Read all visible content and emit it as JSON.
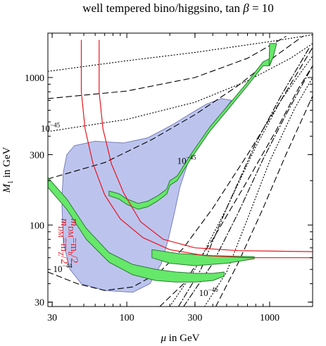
{
  "chart_data": {
    "type": "area",
    "title": "well tempered bino/higgsino, tan β = 10",
    "title_prefix": "well tempered bino/higgsino, tan ",
    "title_beta": "β",
    "title_suffix": " = 10",
    "xlabel": "μ in GeV",
    "xlabel_symbol": "μ",
    "xlabel_text": " in GeV",
    "ylabel": "M1 in GeV",
    "ylabel_symbol": "M",
    "ylabel_sub": "1",
    "ylabel_text": " in GeV",
    "xscale": "log",
    "yscale": "log",
    "xlim": [
      28,
      2000
    ],
    "ylim": [
      28,
      2000
    ],
    "x_ticks": [
      30,
      100,
      300,
      1000
    ],
    "y_ticks": [
      30,
      100,
      300,
      1000
    ],
    "x_tick_labels": [
      "30",
      "100",
      "300",
      "1000"
    ],
    "y_tick_labels": [
      "30",
      "100",
      "300",
      "1000"
    ],
    "grid": false,
    "colors": {
      "region_fill": "#bcc4ee",
      "region_stroke": "#7a80b8",
      "band_fill": "#66e86a",
      "band_stroke": "#2e7a35",
      "mdm_lines": "#e8141e",
      "contours": "#000000"
    },
    "region": {
      "name": "blue shaded region",
      "points": [
        [
          38,
          300
        ],
        [
          43,
          345
        ],
        [
          60,
          370
        ],
        [
          95,
          360
        ],
        [
          140,
          390
        ],
        [
          210,
          480
        ],
        [
          280,
          570
        ],
        [
          360,
          660
        ],
        [
          460,
          720
        ],
        [
          540,
          700
        ],
        [
          430,
          520
        ],
        [
          330,
          370
        ],
        [
          270,
          270
        ],
        [
          235,
          180
        ],
        [
          215,
          120
        ],
        [
          195,
          80
        ],
        [
          175,
          55
        ],
        [
          145,
          40
        ],
        [
          110,
          35
        ],
        [
          70,
          36
        ],
        [
          48,
          40
        ],
        [
          40,
          50
        ],
        [
          36,
          75
        ],
        [
          35,
          150
        ],
        [
          36,
          230
        ]
      ]
    },
    "bands": [
      {
        "name": "green band, left arm",
        "upper": [
          [
            28,
            210
          ],
          [
            38,
            150
          ],
          [
            52,
            95
          ],
          [
            75,
            65
          ],
          [
            110,
            54
          ],
          [
            160,
            50
          ],
          [
            220,
            48
          ],
          [
            300,
            47
          ],
          [
            400,
            47
          ],
          [
            480,
            48
          ]
        ],
        "lower": [
          [
            28,
            180
          ],
          [
            38,
            128
          ],
          [
            52,
            80
          ],
          [
            75,
            56
          ],
          [
            110,
            46
          ],
          [
            160,
            42
          ],
          [
            220,
            41
          ],
          [
            300,
            41
          ],
          [
            400,
            42
          ],
          [
            480,
            45
          ]
        ]
      },
      {
        "name": "green band, right arm",
        "upper": [
          [
            75,
            170
          ],
          [
            88,
            163
          ],
          [
            100,
            150
          ],
          [
            120,
            140
          ],
          [
            140,
            145
          ],
          [
            165,
            158
          ],
          [
            190,
            175
          ],
          [
            200,
            200
          ],
          [
            225,
            215
          ],
          [
            280,
            300
          ],
          [
            380,
            460
          ],
          [
            520,
            660
          ],
          [
            700,
            930
          ],
          [
            900,
            1280
          ],
          [
            1060,
            1380
          ]
        ],
        "lower": [
          [
            75,
            158
          ],
          [
            88,
            150
          ],
          [
            100,
            138
          ],
          [
            120,
            128
          ],
          [
            140,
            133
          ],
          [
            165,
            146
          ],
          [
            190,
            162
          ],
          [
            200,
            186
          ],
          [
            225,
            200
          ],
          [
            280,
            280
          ],
          [
            380,
            430
          ],
          [
            520,
            620
          ],
          [
            700,
            880
          ],
          [
            900,
            1200
          ],
          [
            1000,
            1200
          ]
        ]
      },
      {
        "name": "green band, top strip",
        "upper": [
          [
            990,
            1200
          ],
          [
            1000,
            1700
          ],
          [
            1120,
            1700
          ]
        ],
        "lower": [
          [
            1060,
            1380
          ],
          [
            1120,
            1700
          ]
        ]
      },
      {
        "name": "green band, lower tongue",
        "upper": [
          [
            150,
            68
          ],
          [
            230,
            64
          ],
          [
            400,
            62
          ],
          [
            780,
            61
          ]
        ],
        "lower": [
          [
            150,
            60
          ],
          [
            200,
            55
          ],
          [
            300,
            53
          ],
          [
            500,
            55
          ],
          [
            780,
            59
          ]
        ]
      }
    ],
    "mdm_curves": [
      {
        "name": "m_DM = m_Z / 2",
        "points": [
          [
            48,
            1800
          ],
          [
            48,
            800
          ],
          [
            51,
            450
          ],
          [
            58,
            260
          ],
          [
            70,
            160
          ],
          [
            90,
            110
          ],
          [
            130,
            82
          ],
          [
            200,
            68
          ],
          [
            350,
            62
          ],
          [
            700,
            60
          ],
          [
            2000,
            60
          ]
        ]
      },
      {
        "name": "m_DM = m_h / 2",
        "points": [
          [
            64,
            1800
          ],
          [
            64,
            800
          ],
          [
            68,
            450
          ],
          [
            78,
            260
          ],
          [
            95,
            165
          ],
          [
            125,
            105
          ],
          [
            180,
            80
          ],
          [
            300,
            70
          ],
          [
            600,
            67
          ],
          [
            2000,
            66
          ]
        ]
      }
    ],
    "mdm_labels": [
      {
        "name": "m_Z/2",
        "prefix": "m",
        "sub": "DM",
        "eq": "=m",
        "target_sub": "Z",
        "suffix": "/2"
      },
      {
        "name": "m_h/2",
        "prefix": "m",
        "sub": "DM",
        "eq": "=m",
        "target_sub": "h",
        "suffix": "/2"
      }
    ],
    "cross_section_contours": [
      {
        "name": "dotted 1",
        "dash": "dotted",
        "points": [
          [
            28,
            1100
          ],
          [
            100,
            1300
          ],
          [
            300,
            1480
          ],
          [
            1000,
            1750
          ],
          [
            2000,
            1950
          ]
        ]
      },
      {
        "name": "dotted 2",
        "dash": "dotted",
        "points": [
          [
            28,
            430
          ],
          [
            100,
            520
          ],
          [
            300,
            680
          ],
          [
            700,
            950
          ],
          [
            1400,
            1350
          ],
          [
            2000,
            1700
          ]
        ]
      },
      {
        "name": "dotted 3",
        "dash": "dotted",
        "points": [
          [
            200,
            28
          ],
          [
            300,
            50
          ],
          [
            500,
            130
          ],
          [
            800,
            340
          ],
          [
            1200,
            700
          ],
          [
            2000,
            1400
          ]
        ]
      },
      {
        "name": "dotted 4",
        "dash": "dotted",
        "points": [
          [
            350,
            28
          ],
          [
            500,
            48
          ],
          [
            700,
            110
          ],
          [
            1000,
            270
          ],
          [
            1500,
            620
          ],
          [
            2000,
            1000
          ]
        ]
      },
      {
        "name": "dashed 1",
        "dash": "dashed",
        "points": [
          [
            28,
            720
          ],
          [
            100,
            810
          ],
          [
            300,
            1000
          ],
          [
            700,
            1350
          ],
          [
            1300,
            1900
          ]
        ]
      },
      {
        "name": "dashed 2",
        "dash": "dashed",
        "points": [
          [
            28,
            205
          ],
          [
            70,
            265
          ],
          [
            150,
            380
          ],
          [
            300,
            560
          ],
          [
            600,
            880
          ],
          [
            1100,
            1400
          ],
          [
            1700,
            1900
          ]
        ]
      },
      {
        "name": "dashed 3",
        "dash": "dashed",
        "points": [
          [
            28,
            48
          ],
          [
            45,
            40
          ],
          [
            70,
            36
          ],
          [
            110,
            38
          ],
          [
            170,
            48
          ],
          [
            250,
            70
          ],
          [
            400,
            130
          ],
          [
            700,
            300
          ],
          [
            1200,
            700
          ],
          [
            2000,
            1600
          ]
        ]
      },
      {
        "name": "dashed 4",
        "dash": "dashed",
        "points": [
          [
            170,
            28
          ],
          [
            250,
            40
          ],
          [
            400,
            80
          ],
          [
            700,
            200
          ],
          [
            1100,
            430
          ],
          [
            1600,
            850
          ],
          [
            2000,
            1200
          ]
        ]
      },
      {
        "name": "dashed 5",
        "dash": "dashed",
        "points": [
          [
            420,
            28
          ],
          [
            600,
            55
          ],
          [
            900,
            130
          ],
          [
            1300,
            300
          ],
          [
            2000,
            750
          ]
        ]
      },
      {
        "name": "dashdot 1",
        "dash": "dashdot",
        "points": [
          [
            250,
            28
          ],
          [
            400,
            55
          ],
          [
            600,
            120
          ],
          [
            900,
            280
          ],
          [
            1300,
            560
          ],
          [
            2000,
            1200
          ]
        ]
      },
      {
        "name": "dashdot 2",
        "dash": "dashdot",
        "points": [
          [
            230,
            28
          ],
          [
            330,
            50
          ],
          [
            500,
            130
          ],
          [
            800,
            360
          ],
          [
            1200,
            750
          ],
          [
            1900,
            1600
          ]
        ]
      }
    ],
    "contour_labels": [
      {
        "text": "10",
        "exp": "−45",
        "x": 25,
        "y": 430
      },
      {
        "text": "10",
        "exp": "−45",
        "x": 225,
        "y": 260
      },
      {
        "text": "10",
        "exp": "−44",
        "x": 30.5,
        "y": 48
      },
      {
        "text": "10",
        "exp": "−46",
        "x": 320,
        "y": 33
      }
    ]
  }
}
